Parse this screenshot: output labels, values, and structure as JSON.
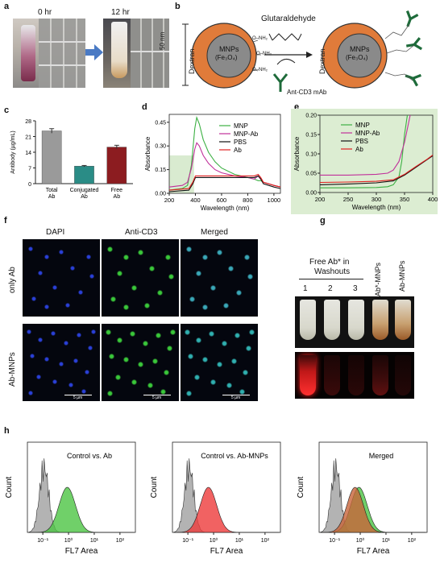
{
  "panels": {
    "a": {
      "label": "a",
      "time_0": "0 hr",
      "time_12": "12 hr"
    },
    "b": {
      "label": "b",
      "reagent": "Glutaraldehyde",
      "size": "50 nm",
      "shell": "Dextran",
      "core_line1": "MNPs",
      "core_line2": "(Fe₃O₄)",
      "antibody": "Ant-CD3 mAb",
      "amine": "O–NH₂"
    },
    "c": {
      "label": "c"
    },
    "d": {
      "label": "d"
    },
    "e": {
      "label": "e"
    },
    "f": {
      "label": "f",
      "columns": [
        "DAPI",
        "Anti-CD3",
        "Merged"
      ],
      "rows": [
        "only Ab",
        "Ab-MNPs"
      ],
      "scale_bar": "5 µm"
    },
    "g": {
      "label": "g",
      "heading_line1": "Free Ab* in",
      "heading_line2": "Washouts",
      "lanes": [
        "1",
        "2",
        "3"
      ],
      "lane_ab_star": "Ab*-MNPs",
      "lane_ab": "Ab-MNPs"
    },
    "h": {
      "label": "h"
    }
  },
  "chart_data": [
    {
      "id": "c",
      "type": "bar",
      "categories": [
        "Total Ab",
        "Conjugated Ab",
        "Free Ab"
      ],
      "tick_labels": [
        [
          "Total",
          "Ab"
        ],
        [
          "Conjugated",
          "Ab"
        ],
        [
          "Free",
          "Ab"
        ]
      ],
      "values": [
        23.5,
        7.8,
        16.3
      ],
      "errors": [
        1.0,
        0.3,
        0.8
      ],
      "colors": [
        "#9a9a9a",
        "#2a8c86",
        "#8c1c20"
      ],
      "ylabel": "Antibody (µg/mL)",
      "ylim": [
        0,
        28
      ],
      "yticks": [
        0,
        7,
        14,
        21,
        28
      ]
    },
    {
      "id": "d",
      "type": "line",
      "xlabel": "Wavelength (nm)",
      "ylabel": "Absorbance",
      "xlim": [
        200,
        1050
      ],
      "ylim": [
        0,
        0.5
      ],
      "xticks": [
        200,
        400,
        600,
        800,
        1000
      ],
      "yticks": [
        "0.00",
        "0.15",
        "0.30",
        "0.45"
      ],
      "legend_position": "top-right",
      "series": [
        {
          "name": "MNP",
          "color": "#3cb043",
          "x": [
            200,
            300,
            340,
            370,
            395,
            410,
            430,
            460,
            500,
            550,
            600,
            700,
            800,
            850,
            880,
            900,
            920,
            1000,
            1050
          ],
          "y": [
            0.02,
            0.03,
            0.05,
            0.18,
            0.41,
            0.48,
            0.44,
            0.34,
            0.26,
            0.2,
            0.16,
            0.12,
            0.1,
            0.09,
            0.08,
            0.08,
            0.07,
            0.05,
            0.04
          ]
        },
        {
          "name": "MNP-Ab",
          "color": "#c0309a",
          "x": [
            200,
            300,
            340,
            370,
            395,
            410,
            430,
            460,
            500,
            550,
            600,
            700,
            800,
            850,
            880,
            900,
            920,
            1000,
            1050
          ],
          "y": [
            0.04,
            0.05,
            0.07,
            0.16,
            0.28,
            0.32,
            0.3,
            0.24,
            0.19,
            0.15,
            0.13,
            0.11,
            0.1,
            0.09,
            0.11,
            0.09,
            0.07,
            0.05,
            0.04
          ]
        },
        {
          "name": "PBS",
          "color": "#111111",
          "x": [
            200,
            350,
            380,
            400,
            450,
            500,
            600,
            700,
            800,
            850,
            880,
            900,
            920,
            1000,
            1050
          ],
          "y": [
            0.01,
            0.02,
            0.06,
            0.1,
            0.1,
            0.1,
            0.1,
            0.1,
            0.1,
            0.1,
            0.11,
            0.09,
            0.06,
            0.04,
            0.03
          ]
        },
        {
          "name": "Ab",
          "color": "#e02020",
          "x": [
            200,
            350,
            380,
            400,
            450,
            500,
            600,
            700,
            800,
            850,
            880,
            900,
            920,
            1000,
            1050
          ],
          "y": [
            0.02,
            0.03,
            0.07,
            0.11,
            0.11,
            0.11,
            0.11,
            0.11,
            0.11,
            0.11,
            0.12,
            0.1,
            0.07,
            0.05,
            0.04
          ]
        }
      ]
    },
    {
      "id": "e",
      "type": "line",
      "xlabel": "Wavelength (nm)",
      "ylabel": "Absorbance",
      "xlim": [
        200,
        400
      ],
      "ylim": [
        0,
        0.2
      ],
      "xticks": [
        200,
        250,
        300,
        350,
        400
      ],
      "yticks": [
        "0.00",
        "0.05",
        "0.10",
        "0.15",
        "0.20"
      ],
      "legend_position": "top-left",
      "series": [
        {
          "name": "MNP",
          "color": "#3cb043",
          "x": [
            200,
            250,
            300,
            320,
            330,
            340,
            345,
            350,
            355
          ],
          "y": [
            0.012,
            0.012,
            0.013,
            0.015,
            0.02,
            0.04,
            0.08,
            0.15,
            0.2
          ]
        },
        {
          "name": "MNP-Ab",
          "color": "#c0309a",
          "x": [
            200,
            250,
            300,
            320,
            330,
            340,
            350,
            360
          ],
          "y": [
            0.045,
            0.045,
            0.047,
            0.05,
            0.058,
            0.08,
            0.13,
            0.2
          ]
        },
        {
          "name": "PBS",
          "color": "#111111",
          "x": [
            200,
            250,
            300,
            330,
            350,
            370,
            390,
            400
          ],
          "y": [
            0.02,
            0.022,
            0.025,
            0.03,
            0.045,
            0.065,
            0.085,
            0.095
          ]
        },
        {
          "name": "Ab",
          "color": "#e02020",
          "x": [
            200,
            250,
            300,
            330,
            350,
            370,
            390,
            400
          ],
          "y": [
            0.026,
            0.027,
            0.029,
            0.033,
            0.047,
            0.067,
            0.086,
            0.097
          ]
        }
      ]
    },
    {
      "id": "h1",
      "type": "area",
      "title": "Control vs. Ab",
      "xlabel": "FL7 Area",
      "ylabel": "Count",
      "x_scale": "log",
      "xticks": [
        "10⁻¹",
        "10⁰",
        "10¹",
        "10²"
      ],
      "series": [
        {
          "name": "Control",
          "color": "#9a9a9a",
          "peak_log10": -0.95
        },
        {
          "name": "Ab",
          "color": "#4cc443",
          "peak_log10": -0.05
        }
      ]
    },
    {
      "id": "h2",
      "type": "area",
      "title": "Control vs. Ab-MNPs",
      "xlabel": "FL7 Area",
      "ylabel": "Count",
      "x_scale": "log",
      "xticks": [
        "10⁻¹",
        "10⁰",
        "10¹",
        "10²"
      ],
      "series": [
        {
          "name": "Control",
          "color": "#9a9a9a",
          "peak_log10": -0.95
        },
        {
          "name": "Ab-MNPs",
          "color": "#ee3b3b",
          "peak_log10": -0.2
        }
      ]
    },
    {
      "id": "h3",
      "type": "area",
      "title": "Merged",
      "xlabel": "FL7 Area",
      "ylabel": "Count",
      "x_scale": "log",
      "xticks": [
        "10⁻¹",
        "10⁰",
        "10¹",
        "10²"
      ],
      "series": [
        {
          "name": "Control",
          "color": "#9a9a9a",
          "peak_log10": -0.95
        },
        {
          "name": "Ab",
          "color": "#4cc443",
          "peak_log10": -0.05
        },
        {
          "name": "Ab-MNPs",
          "color": "#c8643a",
          "peak_log10": -0.2
        }
      ]
    }
  ]
}
